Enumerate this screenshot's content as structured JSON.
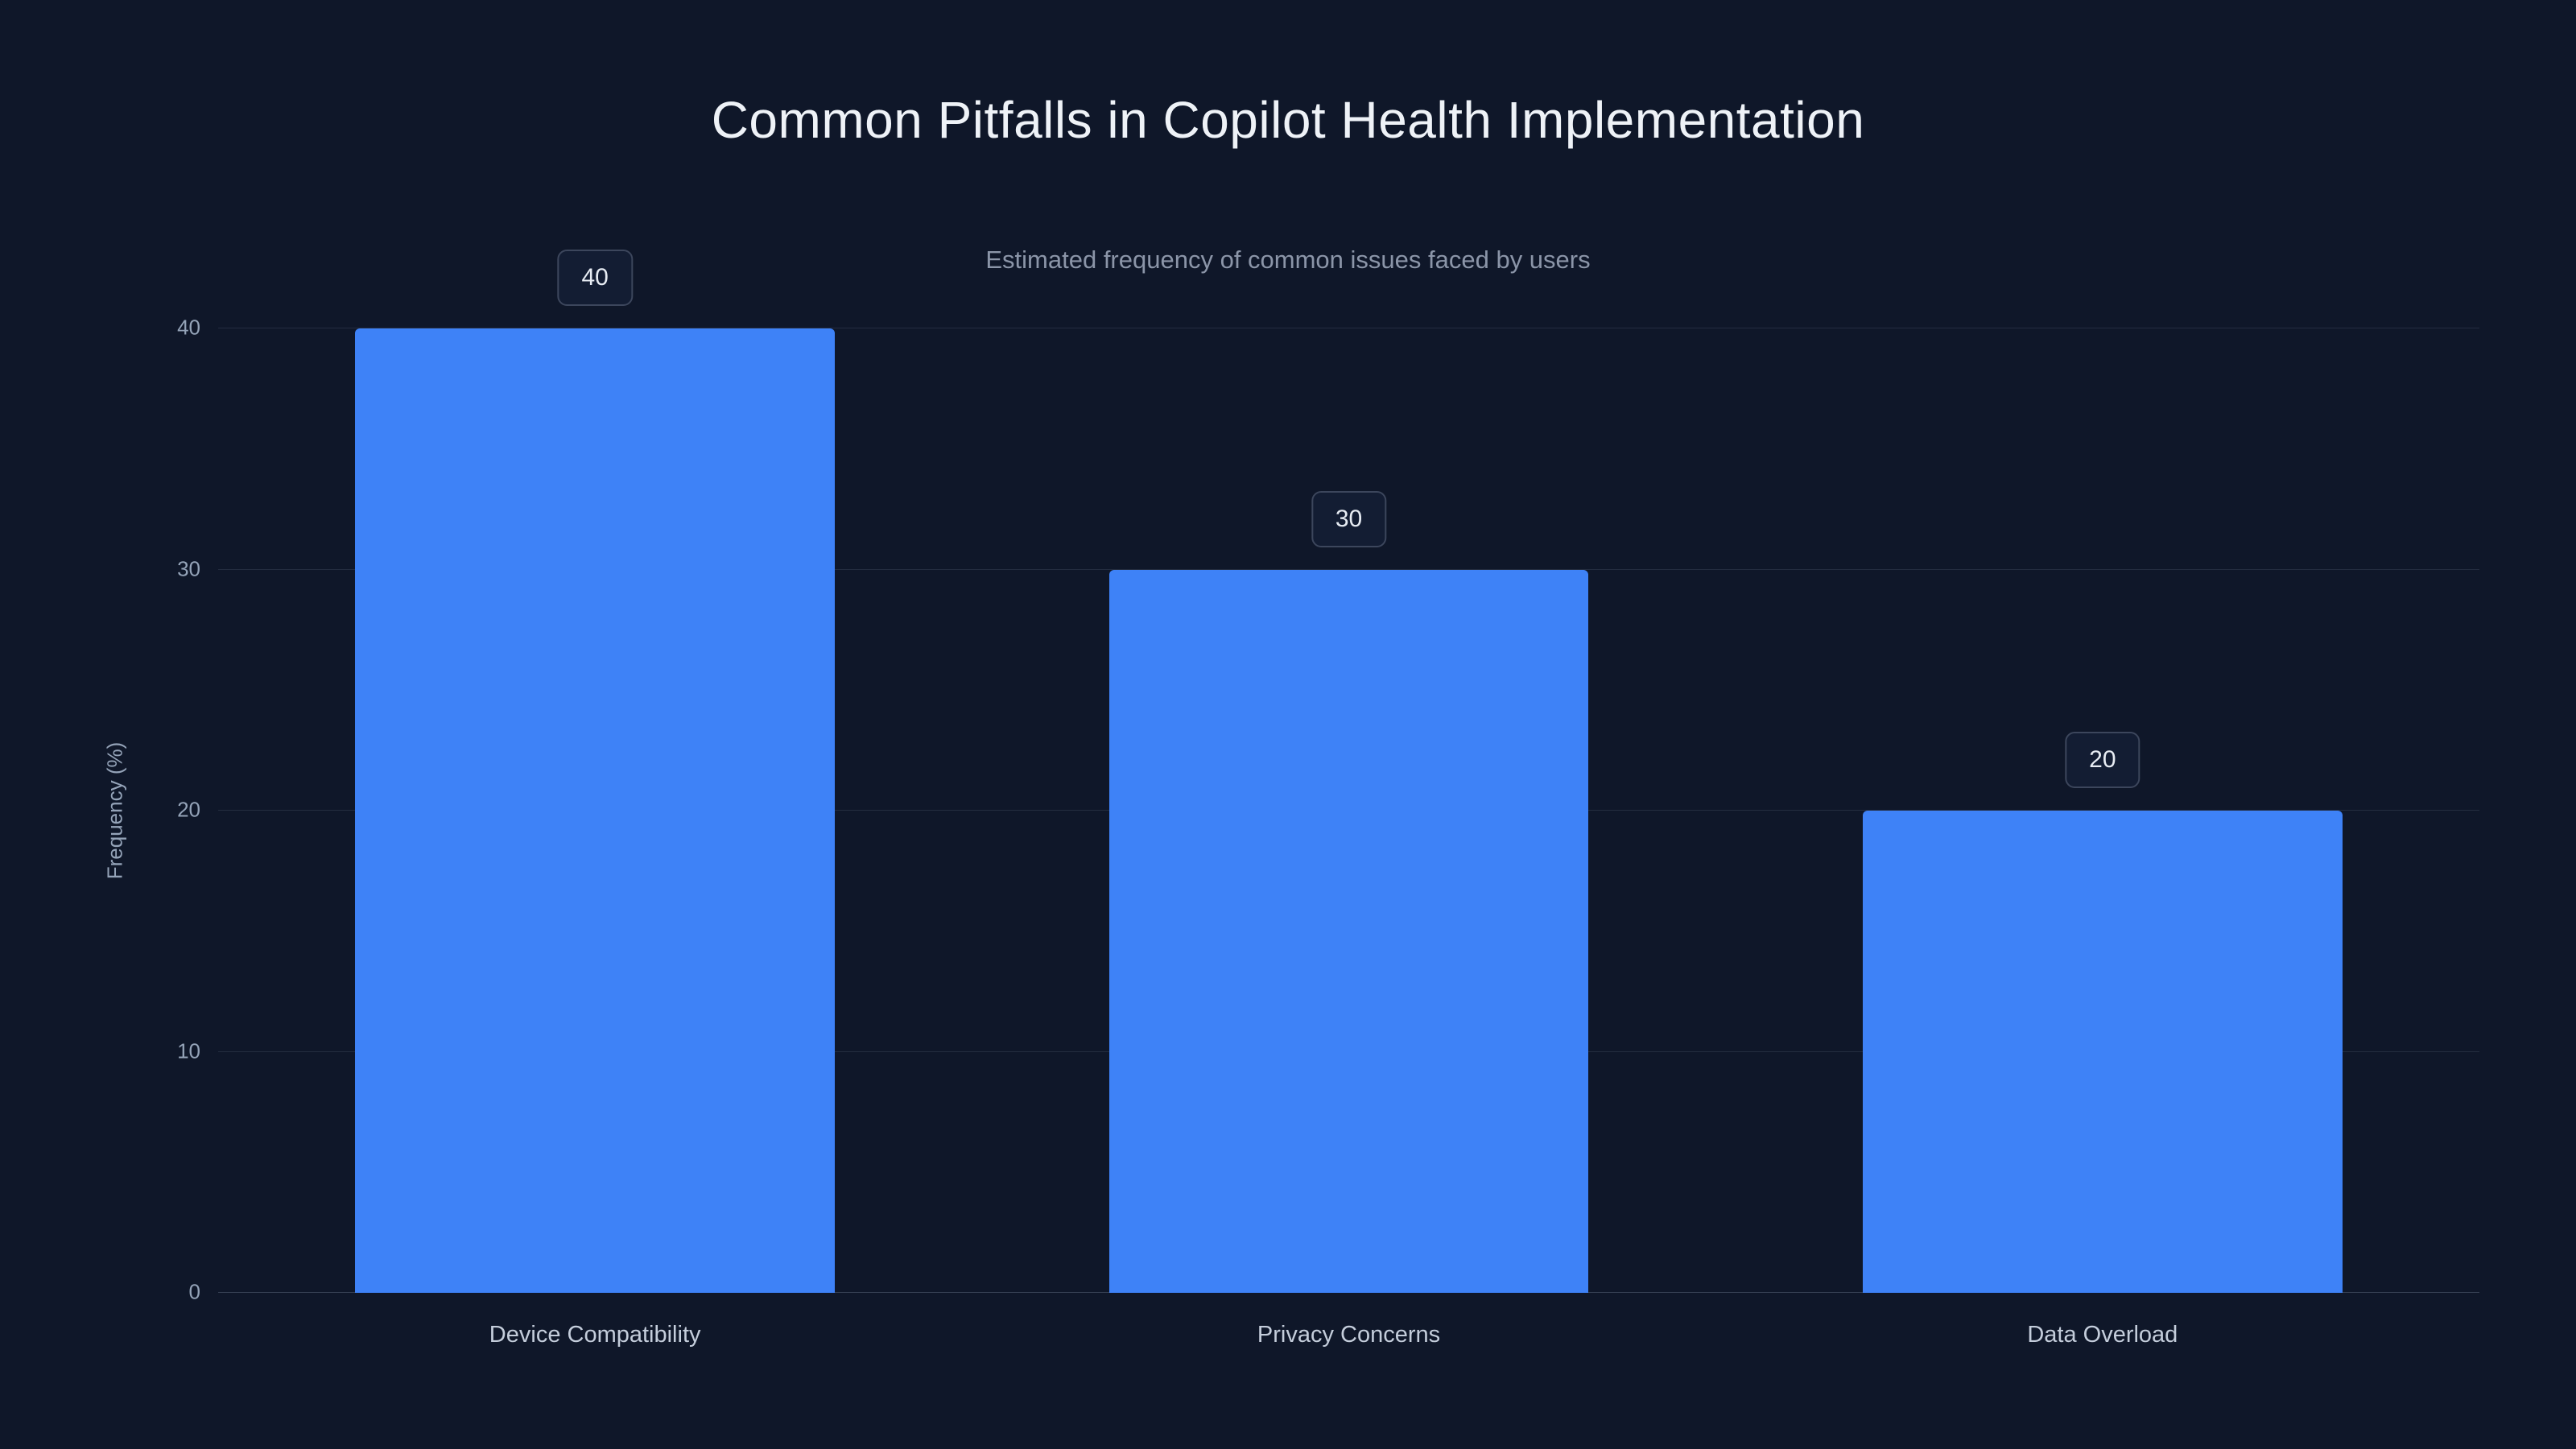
{
  "page": {
    "background": "#0f1729"
  },
  "chart_data": {
    "type": "bar",
    "title": "Common Pitfalls in Copilot Health Implementation",
    "subtitle": "Estimated frequency of common issues faced by users",
    "categories": [
      "Device Compatibility",
      "Privacy Concerns",
      "Data Overload"
    ],
    "values": [
      40,
      30,
      20
    ],
    "value_labels": [
      "40",
      "30",
      "20"
    ],
    "xlabel": "",
    "ylabel": "Frequency (%)",
    "yticks": [
      0,
      10,
      20,
      30,
      40
    ],
    "ylim": [
      0,
      40
    ],
    "bar_color": "#3e82f7",
    "grid": true,
    "legend": false,
    "background": "#0f1729",
    "bar_width_fraction": 0.212
  }
}
